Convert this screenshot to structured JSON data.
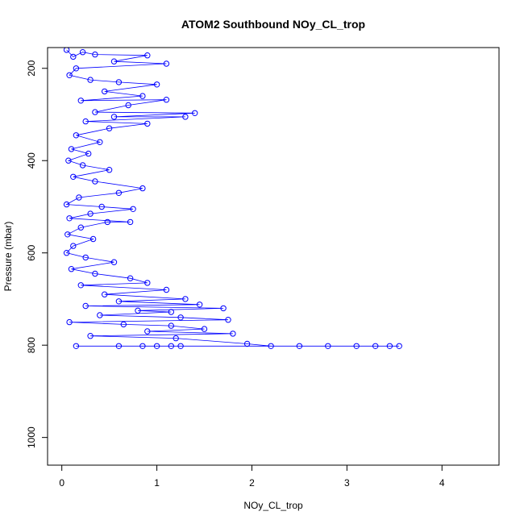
{
  "chart_data": {
    "type": "scatter",
    "title": "ATOM2 Southbound NOy_CL_trop",
    "xlabel": "NOy_CL_trop",
    "ylabel": "Pressure (mbar)",
    "xlim": [
      -0.15,
      4.6
    ],
    "ylim": [
      1060,
      155
    ],
    "y_reversed": true,
    "grid": false,
    "legend": "none",
    "x_ticks": [
      0,
      1,
      2,
      3,
      4
    ],
    "y_ticks": [
      200,
      400,
      600,
      800,
      1000
    ],
    "series": [
      {
        "color": "#0000ff",
        "marker": "open-circle",
        "connected": true,
        "points": [
          [
            0.05,
            160
          ],
          [
            0.12,
            175
          ],
          [
            0.22,
            165
          ],
          [
            0.35,
            170
          ],
          [
            0.9,
            172
          ],
          [
            0.55,
            185
          ],
          [
            1.1,
            190
          ],
          [
            0.15,
            200
          ],
          [
            0.08,
            215
          ],
          [
            0.3,
            225
          ],
          [
            0.6,
            230
          ],
          [
            1.0,
            235
          ],
          [
            0.45,
            250
          ],
          [
            0.85,
            260
          ],
          [
            0.2,
            270
          ],
          [
            1.1,
            268
          ],
          [
            0.7,
            280
          ],
          [
            0.35,
            295
          ],
          [
            1.4,
            297
          ],
          [
            0.55,
            305
          ],
          [
            1.3,
            305
          ],
          [
            0.25,
            315
          ],
          [
            0.9,
            320
          ],
          [
            0.5,
            330
          ],
          [
            0.15,
            345
          ],
          [
            0.4,
            360
          ],
          [
            0.1,
            375
          ],
          [
            0.28,
            385
          ],
          [
            0.07,
            400
          ],
          [
            0.22,
            410
          ],
          [
            0.5,
            420
          ],
          [
            0.12,
            435
          ],
          [
            0.35,
            445
          ],
          [
            0.85,
            460
          ],
          [
            0.6,
            470
          ],
          [
            0.18,
            480
          ],
          [
            0.05,
            495
          ],
          [
            0.42,
            500
          ],
          [
            0.75,
            505
          ],
          [
            0.3,
            515
          ],
          [
            0.08,
            525
          ],
          [
            0.72,
            533
          ],
          [
            0.48,
            533
          ],
          [
            0.2,
            545
          ],
          [
            0.06,
            560
          ],
          [
            0.33,
            570
          ],
          [
            0.12,
            585
          ],
          [
            0.05,
            600
          ],
          [
            0.25,
            610
          ],
          [
            0.55,
            620
          ],
          [
            0.1,
            635
          ],
          [
            0.35,
            645
          ],
          [
            0.72,
            655
          ],
          [
            0.9,
            665
          ],
          [
            0.2,
            670
          ],
          [
            1.1,
            680
          ],
          [
            0.45,
            690
          ],
          [
            1.3,
            700
          ],
          [
            0.6,
            705
          ],
          [
            1.45,
            712
          ],
          [
            0.25,
            715
          ],
          [
            1.7,
            720
          ],
          [
            0.8,
            725
          ],
          [
            1.15,
            728
          ],
          [
            0.4,
            735
          ],
          [
            1.25,
            740
          ],
          [
            1.75,
            745
          ],
          [
            0.08,
            750
          ],
          [
            0.65,
            755
          ],
          [
            1.15,
            758
          ],
          [
            1.5,
            765
          ],
          [
            0.9,
            770
          ],
          [
            1.8,
            775
          ],
          [
            0.3,
            780
          ],
          [
            1.2,
            785
          ],
          [
            1.95,
            797
          ],
          [
            2.2,
            802
          ],
          [
            2.5,
            802
          ],
          [
            2.8,
            802
          ],
          [
            3.1,
            802
          ],
          [
            3.3,
            802
          ],
          [
            3.45,
            802
          ],
          [
            3.55,
            802
          ],
          [
            1.0,
            802
          ],
          [
            0.6,
            802
          ],
          [
            0.15,
            802
          ],
          [
            0.85,
            802
          ],
          [
            1.15,
            802
          ],
          [
            1.25,
            802
          ]
        ]
      }
    ]
  }
}
